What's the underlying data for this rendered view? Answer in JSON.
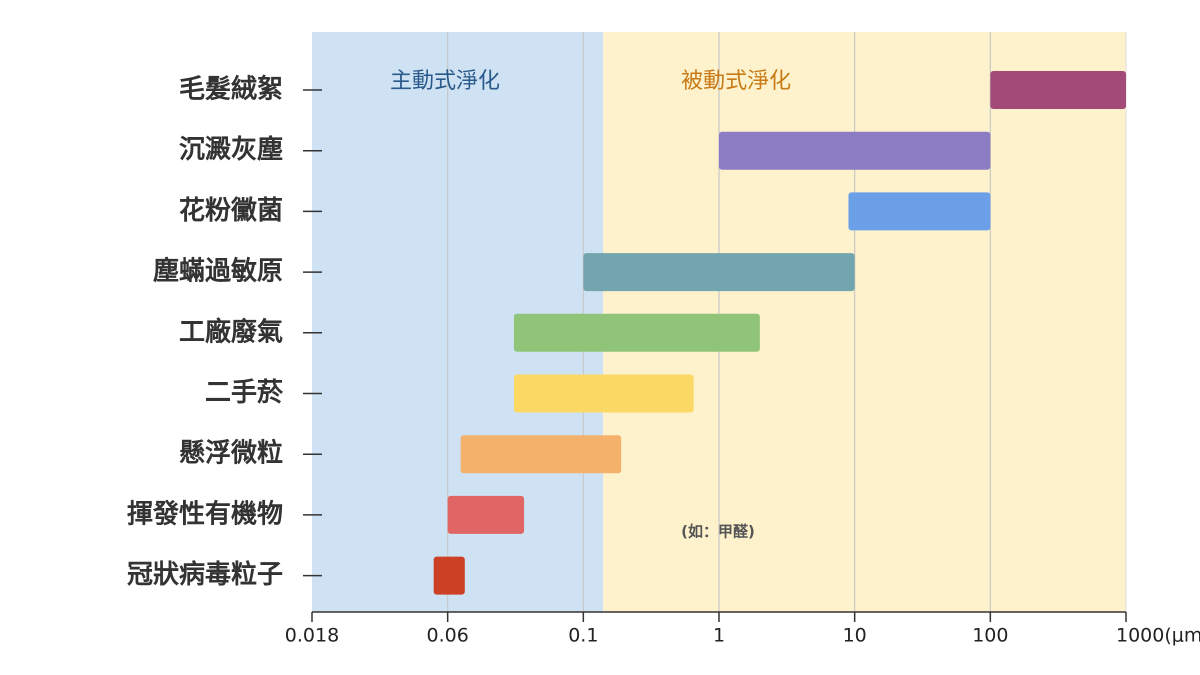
{
  "chart_data": {
    "type": "range-bar",
    "x_scale": "log",
    "categories": [
      "毛髮絨絮",
      "沉澱灰塵",
      "花粉黴菌",
      "塵蟎過敏原",
      "工廠廢氣",
      "二手菸",
      "懸浮微粒",
      "揮發性有機物",
      "冠狀病毒粒子"
    ],
    "starts": [
      100,
      1,
      9,
      0.1,
      0.077,
      0.077,
      0.063,
      0.06,
      0.053
    ],
    "ends": [
      1000,
      100,
      100,
      10,
      2,
      0.65,
      0.19,
      0.08,
      0.064
    ],
    "colors": [
      "#a34a78",
      "#8b7cc4",
      "#6b9fe8",
      "#72a5ae",
      "#90c478",
      "#fcd964",
      "#f4b16b",
      "#e06666",
      "#cc4125"
    ],
    "xlim": [
      0.018,
      1000
    ],
    "xticks": [
      0.018,
      0.06,
      0.1,
      1,
      10,
      100,
      {
        "value": 1000,
        "label": "1000(μm)"
      }
    ],
    "grid": true,
    "regions": [
      {
        "label": "主動式淨化",
        "from": 0.018,
        "to": 0.14,
        "color": "#cfe2f3",
        "text_color": "#2a5a8a"
      },
      {
        "label": "被動式淨化",
        "from": 0.14,
        "to": 1000,
        "color": "#fef2cc",
        "text_color": "#c87a16"
      }
    ],
    "annotation": "(如：甲醛)"
  }
}
